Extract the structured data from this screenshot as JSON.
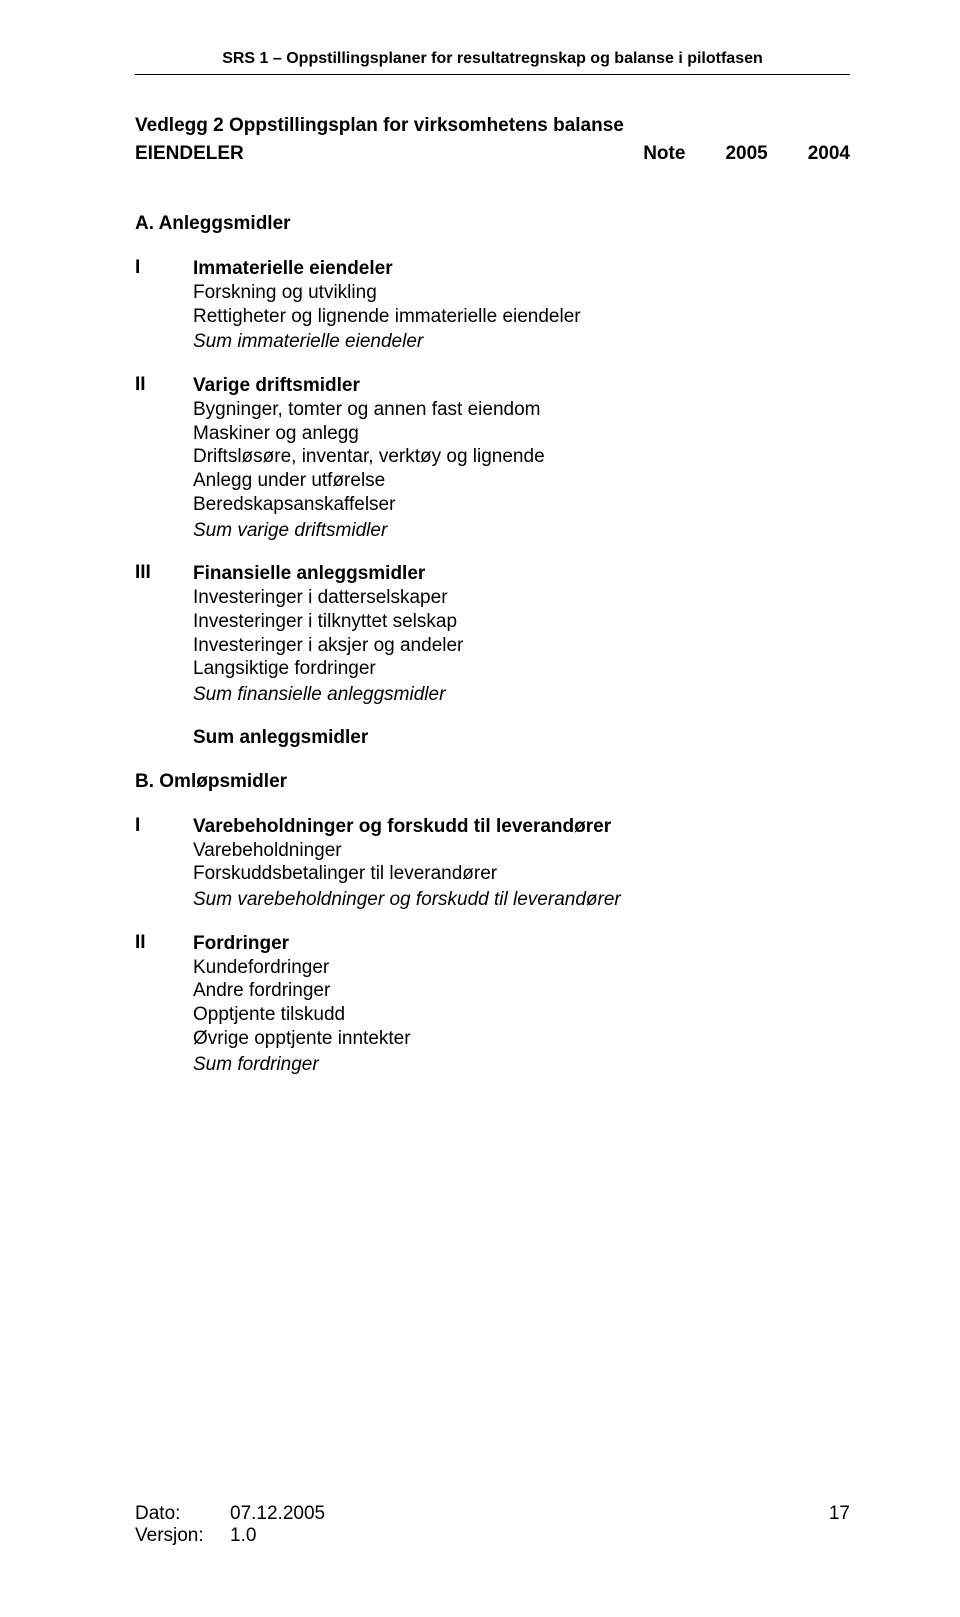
{
  "header": "SRS 1 – Oppstillingsplaner for resultatregnskap og balanse i pilotfasen",
  "title": "Vedlegg 2 Oppstillingsplan for virksomhetens balanse",
  "note_label": "Note",
  "year1": "2005",
  "year2": "2004",
  "subheader": "EIENDELER",
  "sectionA": {
    "heading": "A. Anleggsmidler",
    "groups": [
      {
        "roman": "I",
        "title": "Immaterielle eiendeler",
        "lines": [
          "Forskning og utvikling",
          "Rettigheter og lignende immaterielle eiendeler"
        ],
        "sum": "Sum immaterielle eiendeler"
      },
      {
        "roman": "II",
        "title": "Varige driftsmidler",
        "lines": [
          "Bygninger, tomter og annen fast eiendom",
          "Maskiner og anlegg",
          "Driftsløsøre, inventar, verktøy og lignende",
          "Anlegg under utførelse",
          "Beredskapsanskaffelser"
        ],
        "sum": "Sum varige driftsmidler"
      },
      {
        "roman": "III",
        "title": "Finansielle anleggsmidler",
        "lines": [
          "Investeringer i datterselskaper",
          "Investeringer i tilknyttet selskap",
          "Investeringer i aksjer og andeler",
          "Langsiktige fordringer"
        ],
        "sum": "Sum finansielle anleggsmidler"
      }
    ],
    "sum_major": "Sum anleggsmidler"
  },
  "sectionB": {
    "heading": "B. Omløpsmidler",
    "groups": [
      {
        "roman": "I",
        "title": "Varebeholdninger og forskudd til leverandører",
        "lines": [
          "Varebeholdninger",
          "Forskuddsbetalinger til leverandører"
        ],
        "sum": "Sum varebeholdninger og forskudd til leverandører"
      },
      {
        "roman": "II",
        "title": "Fordringer",
        "lines": [
          "Kundefordringer",
          "Andre fordringer",
          "Opptjente tilskudd",
          "Øvrige opptjente inntekter"
        ],
        "sum": "Sum fordringer"
      }
    ]
  },
  "footer": {
    "date_label": "Dato:",
    "date_value": "07.12.2005",
    "version_label": "Versjon:",
    "version_value": "1.0",
    "page": "17"
  }
}
